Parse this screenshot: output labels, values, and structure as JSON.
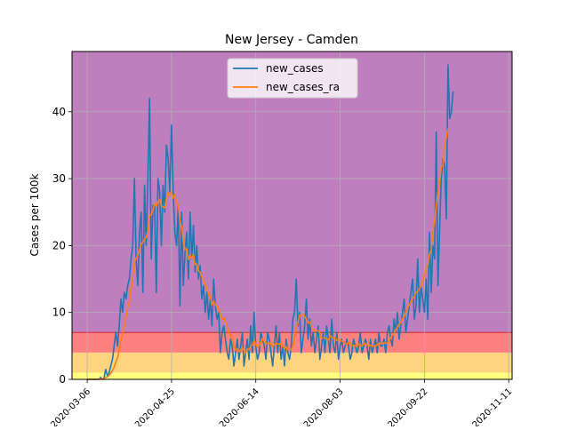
{
  "chart_data": {
    "type": "line",
    "title": "New Jersey - Camden",
    "xlabel": "",
    "ylabel": "Cases per 100k",
    "x_start": "2020-02-26",
    "x_end": "2020-11-13",
    "xlim": [
      "2020-02-26",
      "2020-11-13"
    ],
    "ylim": [
      0,
      49
    ],
    "yticks": [
      0,
      10,
      20,
      30,
      40
    ],
    "xticks": [
      "2020-03-06",
      "2020-04-25",
      "2020-06-14",
      "2020-08-03",
      "2020-09-22",
      "2020-11-11"
    ],
    "grid": true,
    "legend": "upper center",
    "background_bands": [
      {
        "from": 0,
        "to": 1,
        "color": "#ffff80"
      },
      {
        "from": 1,
        "to": 4,
        "color": "#ffd480"
      },
      {
        "from": 4,
        "to": 7,
        "color": "#ff8080"
      },
      {
        "from": 7,
        "to": 49,
        "color": "#bf7fbf"
      }
    ],
    "band_line": {
      "y": 7,
      "color": "#d62728"
    },
    "series": [
      {
        "name": "new_cases",
        "color": "#1f77b4",
        "start": "2020-03-06",
        "values": [
          0,
          0,
          0,
          0,
          0,
          0,
          0,
          0,
          0.3,
          0,
          0.2,
          1.5,
          0.5,
          1,
          2,
          3,
          5,
          7,
          5,
          8,
          12,
          10,
          13,
          12,
          14,
          15,
          18,
          20,
          30,
          18,
          14,
          22,
          25,
          13,
          29,
          20,
          30,
          42,
          18,
          26,
          26,
          13,
          30,
          28,
          20,
          29,
          25,
          35,
          33,
          28,
          38,
          28,
          22,
          20,
          26,
          11,
          25,
          14,
          19,
          22,
          15,
          25,
          18,
          23,
          16,
          20,
          15,
          17,
          12,
          14,
          10,
          13,
          9,
          12,
          8,
          15,
          11,
          9,
          10,
          4,
          7,
          8,
          6,
          4,
          3,
          6,
          5,
          2,
          4,
          6,
          3,
          5,
          7,
          2,
          4,
          6,
          3,
          8,
          4,
          10,
          5,
          3,
          4,
          7,
          6,
          5,
          3,
          7,
          6,
          4,
          2,
          5,
          8,
          4,
          7,
          3,
          5,
          2,
          6,
          4,
          3,
          5,
          9,
          10,
          15,
          8,
          10,
          4,
          6,
          8,
          12,
          6,
          9,
          5,
          7,
          4,
          6,
          8,
          3,
          5,
          7,
          4,
          8,
          6,
          4,
          9,
          5,
          4,
          7,
          3,
          5,
          6,
          4,
          5,
          6,
          5,
          3,
          4,
          6,
          5,
          4,
          5,
          7,
          4,
          5,
          6,
          5,
          3,
          6,
          4,
          5,
          6,
          4,
          7,
          5,
          5,
          6,
          4,
          7,
          8,
          6,
          5,
          9,
          7,
          10,
          6,
          8,
          10,
          12,
          7,
          9,
          11,
          13,
          15,
          9,
          11,
          18,
          10,
          14,
          12,
          10,
          15,
          9,
          22,
          13,
          20,
          18,
          37,
          14,
          22,
          30,
          33,
          32,
          24,
          47,
          39,
          40,
          43
        ],
        "values_note": "daily values 2020-03-06 to 2020-11-12"
      },
      {
        "name": "new_cases_ra",
        "color": "#ff7f0e",
        "start": "2020-03-06",
        "values": [
          0,
          0,
          0,
          0,
          0,
          0,
          0,
          0,
          0.1,
          0.1,
          0.1,
          0.3,
          0.4,
          0.6,
          0.9,
          1.3,
          1.8,
          2.6,
          3.2,
          4.3,
          5.7,
          6.8,
          8,
          9.3,
          10.6,
          11.7,
          13.5,
          15.2,
          17.5,
          18,
          18.6,
          19.3,
          20.2,
          20.5,
          21,
          21.2,
          22.1,
          24.5,
          24.6,
          25.3,
          26.3,
          25.8,
          26.6,
          26.9,
          25.9,
          25.8,
          25.6,
          27,
          27.9,
          27.6,
          28,
          27.1,
          27.6,
          26.3,
          26.1,
          23.7,
          22.8,
          20.6,
          19.4,
          19.5,
          17.9,
          18.6,
          18.1,
          18.7,
          17.1,
          17.3,
          16.2,
          16,
          15.2,
          14.8,
          14,
          13.8,
          12.6,
          12.4,
          11.1,
          11.7,
          11.2,
          10.8,
          10.5,
          9.7,
          8.9,
          9.2,
          8.6,
          7.9,
          6.9,
          6.7,
          6.1,
          5,
          4.4,
          4.6,
          4.1,
          4.4,
          4.7,
          4.3,
          4,
          4.6,
          4.4,
          5,
          5.1,
          5.8,
          5.3,
          4.8,
          5,
          5.6,
          6.1,
          5.6,
          5.4,
          5.4,
          5.5,
          5.2,
          4.9,
          5.2,
          5.4,
          5.3,
          5.2,
          5.5,
          5,
          4.5,
          4.9,
          4.4,
          4.4,
          4.4,
          5.1,
          6.2,
          7.8,
          8.4,
          9.6,
          9.6,
          9.7,
          9.4,
          9,
          8.4,
          8.6,
          7.9,
          7.4,
          7.2,
          7.3,
          7.3,
          6.9,
          6.1,
          6.2,
          6.2,
          6,
          5.9,
          6.5,
          6.4,
          6.1,
          6.3,
          5.8,
          6,
          5.9,
          5.7,
          5.6,
          5.3,
          5.3,
          5.6,
          5.3,
          5.1,
          5.1,
          5,
          4.9,
          5.3,
          5.1,
          5,
          5.3,
          5.4,
          5.1,
          5,
          5.1,
          4.9,
          5,
          5,
          5.1,
          5.4,
          5.4,
          5.3,
          5.5,
          5.4,
          5.4,
          5.8,
          6.2,
          6.5,
          6.9,
          7.4,
          7.8,
          8.2,
          8.4,
          9.1,
          9.4,
          10.1,
          10.7,
          11.1,
          11.6,
          12.1,
          12.4,
          13,
          13.1,
          13.6,
          13.9,
          14.7,
          15.5,
          16.6,
          17,
          18.7,
          19.3,
          22.1,
          23.5,
          26.1,
          28,
          29.3,
          31.7,
          32,
          34.9,
          36.1,
          37.5
        ]
      }
    ]
  }
}
